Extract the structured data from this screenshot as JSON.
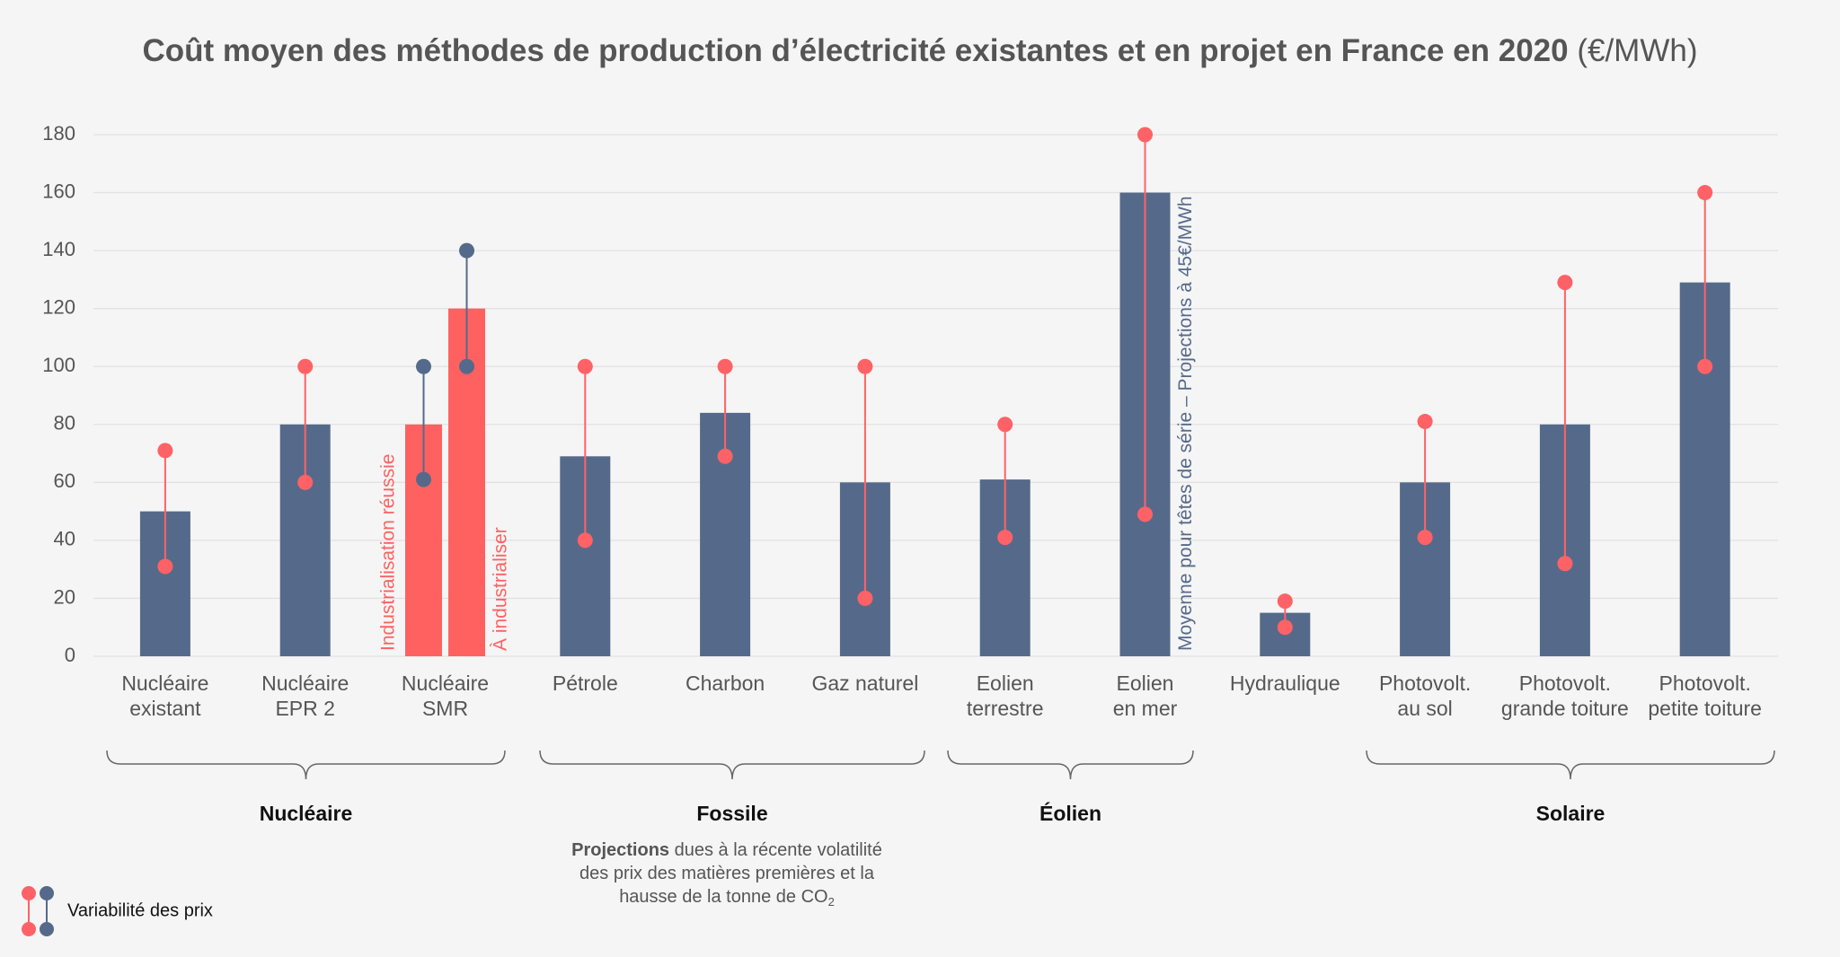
{
  "chart_data": {
    "type": "bar",
    "title": "Coût moyen des méthodes de production d’électricité existantes et en projet en France en 2020",
    "unit": " (€/MWh)",
    "ylim": [
      0,
      180
    ],
    "yticks": [
      0,
      20,
      40,
      60,
      80,
      100,
      120,
      140,
      160,
      180
    ],
    "grid": true,
    "bar_color": "#556a8a",
    "dot_color": "#ff6266",
    "categories": [
      {
        "label": [
          "Nucléaire",
          "existant"
        ],
        "bars": [
          {
            "value": 50,
            "range": [
              31,
              71
            ]
          }
        ]
      },
      {
        "label": [
          "Nucléaire",
          "EPR 2"
        ],
        "bars": [
          {
            "value": 80,
            "range": [
              60,
              100
            ]
          }
        ]
      },
      {
        "label": [
          "Nucléaire",
          "SMR"
        ],
        "bars": [
          {
            "value": 80,
            "range": [
              61,
              100
            ],
            "color": "#ff6161",
            "dot_color": "#556a8a",
            "note": "Industrialisation réussie",
            "note_color": "#ff6161"
          },
          {
            "value": 120,
            "range": [
              100,
              140
            ],
            "color": "#ff6161",
            "dot_color": "#556a8a",
            "note": "À industrialiser",
            "note_color": "#ff6161"
          }
        ]
      },
      {
        "label": [
          "Pétrole"
        ],
        "bars": [
          {
            "value": 69,
            "range": [
              40,
              100
            ]
          }
        ]
      },
      {
        "label": [
          "Charbon"
        ],
        "bars": [
          {
            "value": 84,
            "range": [
              69,
              100
            ]
          }
        ]
      },
      {
        "label": [
          "Gaz naturel"
        ],
        "bars": [
          {
            "value": 60,
            "range": [
              20,
              100
            ]
          }
        ]
      },
      {
        "label": [
          "Eolien",
          "terrestre"
        ],
        "bars": [
          {
            "value": 61,
            "range": [
              41,
              80
            ]
          }
        ]
      },
      {
        "label": [
          "Eolien",
          "en mer"
        ],
        "bars": [
          {
            "value": 160,
            "range": [
              49,
              180
            ],
            "note": "Moyenne pour têtes de série – Projections à 45€/MWh",
            "note_color": "#556a8a"
          }
        ]
      },
      {
        "label": [
          "Hydraulique"
        ],
        "bars": [
          {
            "value": 15,
            "range": [
              10,
              19
            ]
          }
        ]
      },
      {
        "label": [
          "Photovolt.",
          "au sol"
        ],
        "bars": [
          {
            "value": 60,
            "range": [
              41,
              81
            ]
          }
        ]
      },
      {
        "label": [
          "Photovolt.",
          "grande toiture"
        ],
        "bars": [
          {
            "value": 80,
            "range": [
              32,
              129
            ]
          }
        ]
      },
      {
        "label": [
          "Photovolt.",
          "petite toiture"
        ],
        "bars": [
          {
            "value": 129,
            "range": [
              100,
              160
            ]
          }
        ]
      }
    ],
    "groups": [
      "Nucléaire",
      "Fossile",
      "Éolien",
      "Solaire"
    ],
    "note": [
      [
        {
          "text": "Projections",
          "bold": true
        },
        {
          "text": " dues à la récente volatilité"
        }
      ],
      [
        {
          "text": "des prix des matières premières et la"
        }
      ],
      [
        {
          "text": "hausse de la tonne de CO"
        },
        {
          "text": "2",
          "sub": true
        }
      ]
    ],
    "legend": "Variabilité des prix"
  }
}
